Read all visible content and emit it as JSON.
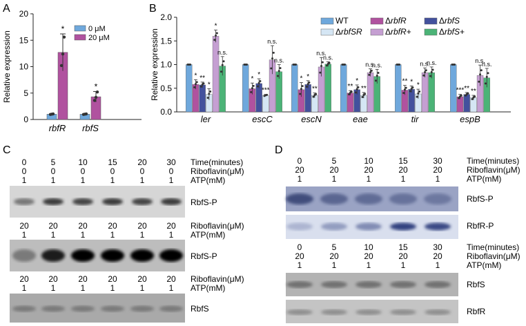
{
  "panels": {
    "A": "A",
    "B": "B",
    "C": "C",
    "D": "D"
  },
  "colors": {
    "wt": "#6fa8dc",
    "rbfR": "#b0529f",
    "rbfS": "#43519d",
    "rbfSR": "#d5e6f4",
    "rbfR_plus": "#c59fd2",
    "rbfS_plus": "#4bb377",
    "zero": "#6fa8dc",
    "twenty": "#b0529f"
  },
  "chart_data": [
    {
      "panel": "A",
      "type": "bar",
      "categories": [
        "rbfR",
        "rbfS"
      ],
      "series": [
        {
          "name": "0 μM",
          "values": [
            1.0,
            1.0
          ],
          "error": [
            0.05,
            0.05
          ],
          "points": [
            [
              0.95,
              1.0,
              1.05
            ],
            [
              0.95,
              1.0,
              1.05
            ]
          ]
        },
        {
          "name": "20 μM",
          "values": [
            12.7,
            4.3
          ],
          "error": [
            3.5,
            1.0
          ],
          "points": [
            [
              10.2,
              12.4,
              15.6
            ],
            [
              3.6,
              4.2,
              5.2
            ]
          ]
        }
      ],
      "significance": [
        [
          "",
          "*"
        ],
        [
          "",
          "*"
        ]
      ],
      "ylabel": "Relative expression",
      "ylim": [
        0,
        20
      ],
      "yticks": [
        "0",
        "5",
        "10",
        "15",
        "20"
      ],
      "legend_position": "top-right"
    },
    {
      "panel": "B",
      "type": "bar",
      "categories": [
        "ler",
        "escC",
        "escN",
        "eae",
        "tir",
        "espB"
      ],
      "series": [
        {
          "name": "WT",
          "values": [
            1.0,
            1.0,
            1.0,
            1.0,
            1.0,
            1.0
          ],
          "error": [
            0.0,
            0.0,
            0.0,
            0.0,
            0.0,
            0.0
          ],
          "sig": [
            "",
            "",
            "",
            "",
            "",
            ""
          ]
        },
        {
          "name": "ΔrbfR",
          "values": [
            0.58,
            0.49,
            0.47,
            0.4,
            0.46,
            0.32
          ],
          "error": [
            0.1,
            0.12,
            0.15,
            0.05,
            0.1,
            0.05
          ],
          "sig": [
            "*",
            "*",
            "*",
            "**",
            "**",
            "***"
          ]
        },
        {
          "name": "ΔrbfS",
          "values": [
            0.57,
            0.6,
            0.58,
            0.47,
            0.48,
            0.37
          ],
          "error": [
            0.06,
            0.1,
            0.08,
            0.1,
            0.07,
            0.04
          ],
          "sig": [
            "**",
            "*",
            "*",
            "*",
            "*",
            "**"
          ]
        },
        {
          "name": "ΔrbfSR",
          "values": [
            0.37,
            0.35,
            0.35,
            0.35,
            0.38,
            0.3
          ],
          "error": [
            0.12,
            0.02,
            0.05,
            0.06,
            0.1,
            0.05
          ],
          "sig": [
            "*",
            "***",
            "**",
            "**",
            "*",
            "**"
          ]
        },
        {
          "name": "ΔrbfR+",
          "values": [
            1.6,
            1.1,
            0.95,
            0.83,
            0.83,
            0.77
          ],
          "error": [
            0.13,
            0.3,
            0.2,
            0.08,
            0.1,
            0.22
          ],
          "sig": [
            "*",
            "n.s.",
            "n.s.",
            "n.s.",
            "n.s.",
            "n.s."
          ]
        },
        {
          "name": "ΔrbfS+",
          "values": [
            0.97,
            0.85,
            1.01,
            0.75,
            0.83,
            0.72
          ],
          "error": [
            0.2,
            0.15,
            0.05,
            0.15,
            0.12,
            0.2
          ],
          "sig": [
            "n.s.",
            "n.s.",
            "n.s.",
            "n.s.",
            "n.s.",
            "n.s."
          ]
        }
      ],
      "ylabel": "Relative expression",
      "ylim": [
        0,
        2.0
      ],
      "yticks": [
        "0.0",
        "0.5",
        "1.0",
        "1.5",
        "2.0"
      ],
      "legend_position": "top-right"
    }
  ],
  "panelC": {
    "rows": [
      {
        "label": "Time(minutes)",
        "values": [
          "0",
          "5",
          "10",
          "15",
          "20",
          "30"
        ]
      },
      {
        "label": "Riboflavin(μM)",
        "values": [
          "0",
          "0",
          "0",
          "0",
          "0",
          "0"
        ]
      },
      {
        "label": "ATP(mM)",
        "values": [
          "1",
          "1",
          "1",
          "1",
          "1",
          "1"
        ]
      }
    ],
    "blot1": "RbfS-P",
    "rows2": [
      {
        "label": "Riboflavin(μM)",
        "values": [
          "20",
          "20",
          "20",
          "20",
          "20",
          "20"
        ]
      },
      {
        "label": "ATP(mM)",
        "values": [
          "1",
          "1",
          "1",
          "1",
          "1",
          "1"
        ]
      }
    ],
    "blot2": "RbfS-P",
    "rows3": [
      {
        "label": "Riboflavin(μM)",
        "values": [
          "20",
          "20",
          "20",
          "20",
          "20",
          "20"
        ]
      },
      {
        "label": "ATP(mM)",
        "values": [
          "1",
          "1",
          "1",
          "1",
          "1",
          "1"
        ]
      }
    ],
    "blot3": "RbfS"
  },
  "panelD": {
    "rows": [
      {
        "label": "Time(minutes)",
        "values": [
          "0",
          "5",
          "10",
          "15",
          "30"
        ]
      },
      {
        "label": "Riboflavin(μM)",
        "values": [
          "20",
          "20",
          "20",
          "20",
          "20"
        ]
      },
      {
        "label": "ATP(mM)",
        "values": [
          "1",
          "1",
          "1",
          "1",
          "1"
        ]
      }
    ],
    "blot1": "RbfS-P",
    "blot2": "RbfR-P",
    "rows2": [
      {
        "label": "Time(minutes)",
        "values": [
          "0",
          "5",
          "10",
          "15",
          "30"
        ]
      },
      {
        "label": "Riboflavin(μM)",
        "values": [
          "20",
          "20",
          "20",
          "20",
          "20"
        ]
      },
      {
        "label": "ATP(mM)",
        "values": [
          "1",
          "1",
          "1",
          "1",
          "1"
        ]
      }
    ],
    "blot3": "RbfS",
    "blot4": "RbfR"
  }
}
